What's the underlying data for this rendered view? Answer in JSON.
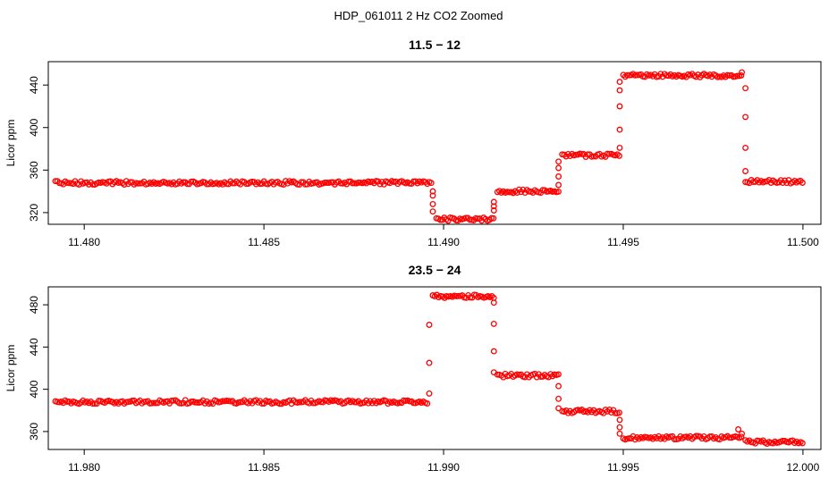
{
  "page": {
    "title": "HDP_061011  2 Hz CO2 Zoomed"
  },
  "colors": {
    "points": "#ff0000",
    "axis": "#000000",
    "background": "#ffffff"
  },
  "chart_data": [
    {
      "type": "scatter",
      "title": "11.5 − 12",
      "xlabel": "",
      "ylabel": "Licor ppm",
      "xlim": [
        11.479,
        11.5005
      ],
      "ylim": [
        309,
        462
      ],
      "xticks": [
        11.48,
        11.485,
        11.49,
        11.495,
        11.5
      ],
      "xtick_labels": [
        "11.480",
        "11.485",
        "11.490",
        "11.495",
        "11.500"
      ],
      "yticks": [
        320,
        360,
        400,
        440
      ],
      "ytick_labels": [
        "320",
        "360",
        "400",
        "440"
      ],
      "grid": false,
      "legend": "none",
      "series": [
        {
          "marker": "open-circle",
          "step_levels": [
            {
              "x_start": 11.4792,
              "x_end": 11.4897,
              "y": 348
            },
            {
              "x_start": 11.4898,
              "x_end": 11.4914,
              "y": 314
            },
            {
              "x_start": 11.4915,
              "x_end": 11.4932,
              "y": 340
            },
            {
              "x_start": 11.4933,
              "x_end": 11.4949,
              "y": 374
            },
            {
              "x_start": 11.495,
              "x_end": 11.4983,
              "y": 449
            },
            {
              "x_start": 11.4984,
              "x_end": 11.5,
              "y": 349
            }
          ],
          "transition_points": [
            {
              "x": 11.4897,
              "y": 340
            },
            {
              "x": 11.4897,
              "y": 336
            },
            {
              "x": 11.4897,
              "y": 328
            },
            {
              "x": 11.4897,
              "y": 321
            },
            {
              "x": 11.4914,
              "y": 322
            },
            {
              "x": 11.4914,
              "y": 326
            },
            {
              "x": 11.4914,
              "y": 330
            },
            {
              "x": 11.4932,
              "y": 346
            },
            {
              "x": 11.4932,
              "y": 354
            },
            {
              "x": 11.4932,
              "y": 362
            },
            {
              "x": 11.4932,
              "y": 368
            },
            {
              "x": 11.4949,
              "y": 381
            },
            {
              "x": 11.4949,
              "y": 398
            },
            {
              "x": 11.4949,
              "y": 420
            },
            {
              "x": 11.4949,
              "y": 435
            },
            {
              "x": 11.4949,
              "y": 443
            },
            {
              "x": 11.4983,
              "y": 452
            },
            {
              "x": 11.4984,
              "y": 437
            },
            {
              "x": 11.4984,
              "y": 410
            },
            {
              "x": 11.4984,
              "y": 381
            },
            {
              "x": 11.4984,
              "y": 359
            }
          ]
        }
      ]
    },
    {
      "type": "scatter",
      "title": "23.5 − 24",
      "xlabel": "",
      "ylabel": "Licor ppm",
      "xlim": [
        11.979,
        12.0005
      ],
      "ylim": [
        343,
        497
      ],
      "xticks": [
        11.98,
        11.985,
        11.99,
        11.995,
        12.0
      ],
      "xtick_labels": [
        "11.980",
        "11.985",
        "11.990",
        "11.995",
        "12.000"
      ],
      "yticks": [
        360,
        400,
        440,
        480
      ],
      "ytick_labels": [
        "360",
        "400",
        "440",
        "480"
      ],
      "grid": false,
      "legend": "none",
      "series": [
        {
          "marker": "open-circle",
          "step_levels": [
            {
              "x_start": 11.9792,
              "x_end": 11.9896,
              "y": 388
            },
            {
              "x_start": 11.9897,
              "x_end": 11.9914,
              "y": 488
            },
            {
              "x_start": 11.9915,
              "x_end": 11.9932,
              "y": 413
            },
            {
              "x_start": 11.9933,
              "x_end": 11.9949,
              "y": 379
            },
            {
              "x_start": 11.995,
              "x_end": 11.9983,
              "y": 354
            },
            {
              "x_start": 11.9984,
              "x_end": 12.0,
              "y": 350
            }
          ],
          "transition_points": [
            {
              "x": 11.9896,
              "y": 396
            },
            {
              "x": 11.9896,
              "y": 425
            },
            {
              "x": 11.9896,
              "y": 461
            },
            {
              "x": 11.9914,
              "y": 482
            },
            {
              "x": 11.9914,
              "y": 462
            },
            {
              "x": 11.9914,
              "y": 436
            },
            {
              "x": 11.9914,
              "y": 416
            },
            {
              "x": 11.9932,
              "y": 403
            },
            {
              "x": 11.9932,
              "y": 391
            },
            {
              "x": 11.9932,
              "y": 382
            },
            {
              "x": 11.9949,
              "y": 371
            },
            {
              "x": 11.9949,
              "y": 364
            },
            {
              "x": 11.9949,
              "y": 358
            },
            {
              "x": 11.9982,
              "y": 362
            },
            {
              "x": 11.9983,
              "y": 358
            }
          ]
        }
      ]
    }
  ]
}
